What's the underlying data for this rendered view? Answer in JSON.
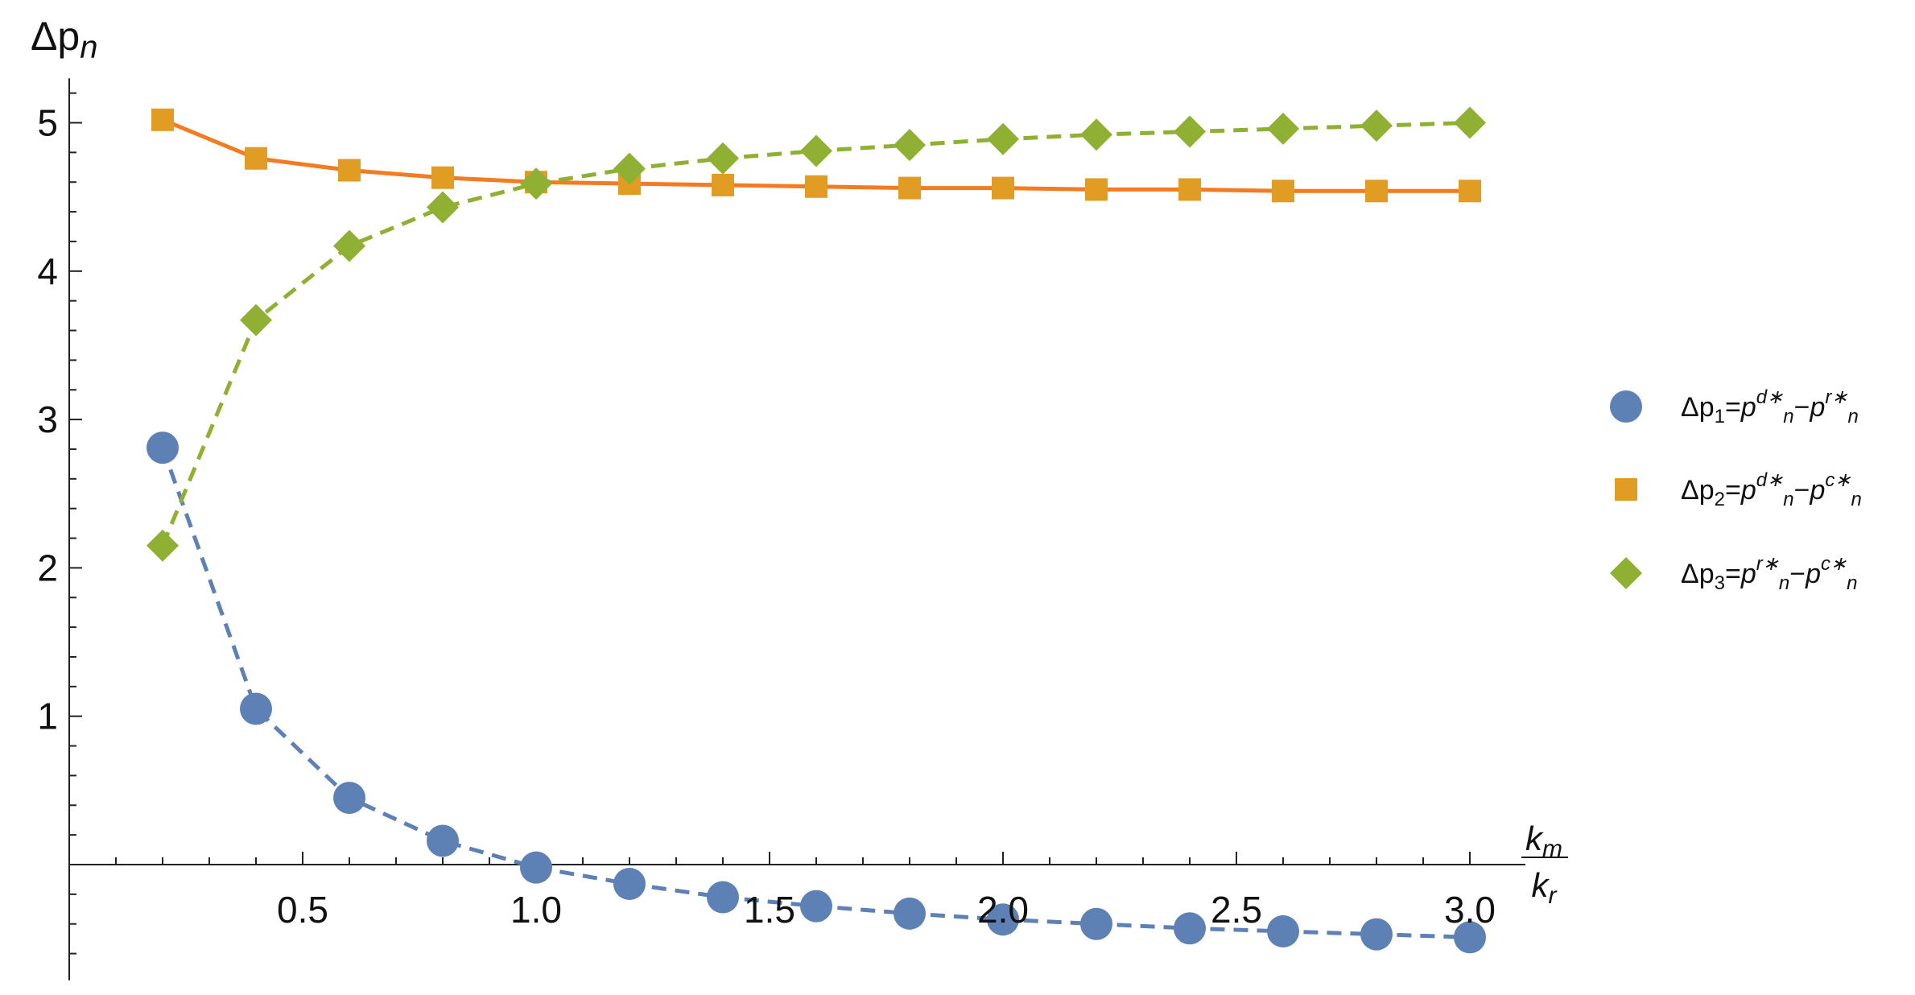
{
  "chart_data": {
    "type": "line",
    "ylabel_main": "Δp",
    "ylabel_sub": "n",
    "xlabel_num_main": "k",
    "xlabel_num_sub": "m",
    "xlabel_den_main": "k",
    "xlabel_den_sub": "r",
    "xlim": [
      0,
      3.05
    ],
    "ylim": [
      -0.78,
      5.3
    ],
    "x_ticks": [
      0.5,
      1.0,
      1.5,
      2.0,
      2.5,
      3.0
    ],
    "x_tick_labels": [
      "0.5",
      "1.0",
      "1.5",
      "2.0",
      "2.5",
      "3.0"
    ],
    "y_ticks": [
      1,
      2,
      3,
      4,
      5
    ],
    "y_tick_labels": [
      "1",
      "2",
      "3",
      "4",
      "5"
    ],
    "x": [
      0.2,
      0.4,
      0.6,
      0.8,
      1.0,
      1.2,
      1.4,
      1.6,
      1.8,
      2.0,
      2.2,
      2.4,
      2.6,
      2.8,
      3.0
    ],
    "series": [
      {
        "legend_label": {
          "base": "Δp",
          "idx": "1",
          "t1": "p",
          "s1": "d∗",
          "n1": "n",
          "t2": "p",
          "s2": "r∗",
          "n2": "n"
        },
        "color": "#5E81B5",
        "marker": "circle",
        "dashed": true,
        "values": [
          2.81,
          1.05,
          0.45,
          0.16,
          -0.02,
          -0.13,
          -0.22,
          -0.28,
          -0.33,
          -0.37,
          -0.4,
          -0.43,
          -0.45,
          -0.47,
          -0.49
        ]
      },
      {
        "legend_label": {
          "base": "Δp",
          "idx": "2",
          "t1": "p",
          "s1": "d∗",
          "n1": "n",
          "t2": "p",
          "s2": "c∗",
          "n2": "n"
        },
        "color": "#E19C24",
        "line_color": "#F47B20",
        "marker": "square",
        "dashed": false,
        "values": [
          5.02,
          4.76,
          4.68,
          4.63,
          4.6,
          4.59,
          4.58,
          4.57,
          4.56,
          4.56,
          4.55,
          4.55,
          4.54,
          4.54,
          4.54
        ]
      },
      {
        "legend_label": {
          "base": "Δp",
          "idx": "3",
          "t1": "p",
          "s1": "r∗",
          "n1": "n",
          "t2": "p",
          "s2": "c∗",
          "n2": "n"
        },
        "color": "#8FB032",
        "marker": "diamond",
        "dashed": true,
        "values": [
          2.15,
          3.67,
          4.17,
          4.43,
          4.59,
          4.69,
          4.76,
          4.81,
          4.85,
          4.89,
          4.92,
          4.94,
          4.96,
          4.98,
          5.0
        ]
      }
    ],
    "legend_position": "right",
    "grid": false
  }
}
